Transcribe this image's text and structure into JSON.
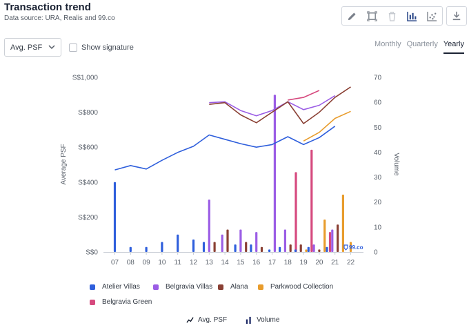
{
  "header": {
    "title": "Transaction trend",
    "subtitle": "Data source: URA, Realis and 99.co"
  },
  "toolbar": {
    "icons": [
      "pencil-icon",
      "fit-icon",
      "trash-icon",
      "bar-chart-icon",
      "scatter-icon",
      "download-icon"
    ]
  },
  "controls": {
    "metric_value": "Avg. PSF",
    "show_signature_label": "Show signature",
    "tabs": [
      "Monthly",
      "Quarterly",
      "Yearly"
    ],
    "active_tab": "Yearly"
  },
  "watermark": "99.co",
  "bottom_toggles": {
    "line_label": "Avg. PSF",
    "bar_label": "Volume"
  },
  "colors": {
    "Atelier Villas": "#2f5fdc",
    "Belgravia Villas": "#9b5de5",
    "Alana": "#8a4034",
    "Parkwood Collection": "#e89c2c",
    "Belgravia Green": "#d6497e"
  },
  "chart_data": {
    "type": "bar+line",
    "title": "Transaction trend",
    "xlabel": "",
    "ylabel": "Average PSF",
    "y2label": "Volume",
    "categories": [
      "07",
      "08",
      "09",
      "10",
      "11",
      "12",
      "13",
      "14",
      "15",
      "16",
      "17",
      "18",
      "19",
      "20",
      "21",
      "22"
    ],
    "y_ticks": [
      "S$0",
      "S$200",
      "S$400",
      "S$600",
      "S$800",
      "S$1,000"
    ],
    "y2_ticks": [
      "0",
      "10",
      "20",
      "30",
      "40",
      "50",
      "60",
      "70"
    ],
    "ylim": [
      0,
      1000
    ],
    "y2lim": [
      0,
      70
    ],
    "legend": [
      "Atelier Villas",
      "Belgravia Villas",
      "Alana",
      "Parkwood Collection",
      "Belgravia Green"
    ],
    "line_series": [
      {
        "name": "Atelier Villas",
        "values": [
          470,
          495,
          475,
          525,
          570,
          605,
          670,
          645,
          620,
          600,
          615,
          660,
          615,
          655,
          720,
          null
        ]
      },
      {
        "name": "Belgravia Villas",
        "values": [
          null,
          null,
          null,
          null,
          null,
          null,
          855,
          860,
          810,
          780,
          810,
          860,
          815,
          840,
          895,
          null
        ]
      },
      {
        "name": "Alana",
        "values": [
          null,
          null,
          null,
          null,
          null,
          null,
          845,
          855,
          785,
          740,
          800,
          860,
          735,
          800,
          885,
          945
        ]
      },
      {
        "name": "Parkwood Collection",
        "values": [
          null,
          null,
          null,
          null,
          null,
          null,
          null,
          null,
          null,
          null,
          null,
          null,
          635,
          685,
          765,
          805
        ]
      },
      {
        "name": "Belgravia Green",
        "values": [
          null,
          null,
          null,
          null,
          null,
          null,
          null,
          null,
          null,
          null,
          null,
          870,
          885,
          925,
          null,
          null
        ]
      }
    ],
    "bar_series": [
      {
        "name": "Atelier Villas",
        "values": [
          28,
          2,
          2,
          4,
          7,
          5,
          4,
          0,
          3,
          3,
          1,
          2,
          1,
          2,
          2,
          0
        ]
      },
      {
        "name": "Belgravia Villas",
        "values": [
          0,
          0,
          0,
          0,
          0,
          0,
          21,
          7,
          9,
          8,
          63,
          9,
          0,
          3,
          9,
          0
        ]
      },
      {
        "name": "Alana",
        "values": [
          0,
          0,
          0,
          0,
          0,
          0,
          4,
          9,
          4,
          2,
          0,
          3,
          3,
          1,
          11,
          0
        ]
      },
      {
        "name": "Parkwood Collection",
        "values": [
          0,
          0,
          0,
          0,
          0,
          0,
          0,
          0,
          0,
          0,
          0,
          0,
          1,
          13,
          23,
          4
        ]
      },
      {
        "name": "Belgravia Green",
        "values": [
          0,
          0,
          0,
          0,
          0,
          0,
          0,
          0,
          0,
          0,
          0,
          32,
          41,
          8,
          0,
          0
        ]
      }
    ]
  }
}
